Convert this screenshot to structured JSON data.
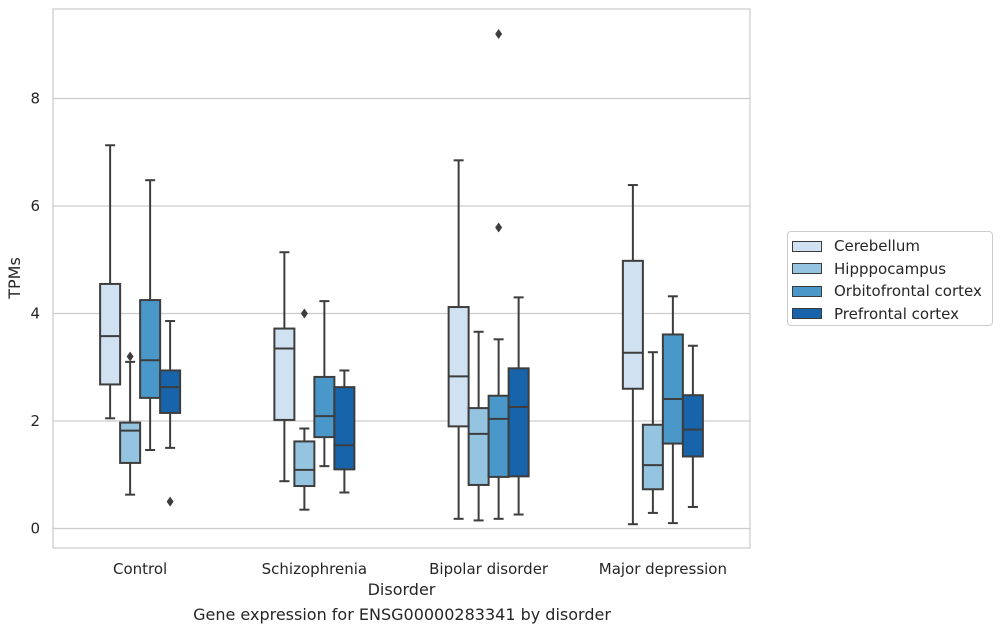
{
  "chart_data": {
    "type": "box",
    "caption": "Gene expression for ENSG00000283341 by disorder",
    "xlabel": "Disorder",
    "ylabel": "TPMs",
    "categories": [
      "Control",
      "Schizophrenia",
      "Bipolar disorder",
      "Major depression"
    ],
    "ylim": [
      -0.35,
      9.6
    ],
    "yticks": [
      0,
      2,
      4,
      6,
      8
    ],
    "grid": "horizontal",
    "legend_position": "right",
    "series": [
      {
        "name": "Cerebellum",
        "color": "#d0e1f2",
        "boxes": [
          {
            "whisker_low": 2.05,
            "q1": 2.68,
            "median": 3.58,
            "q3": 4.55,
            "whisker_high": 7.13,
            "outliers": []
          },
          {
            "whisker_low": 0.88,
            "q1": 2.02,
            "median": 3.35,
            "q3": 3.72,
            "whisker_high": 5.14,
            "outliers": []
          },
          {
            "whisker_low": 0.18,
            "q1": 1.9,
            "median": 2.83,
            "q3": 4.12,
            "whisker_high": 6.85,
            "outliers": []
          },
          {
            "whisker_low": 0.08,
            "q1": 2.6,
            "median": 3.27,
            "q3": 4.98,
            "whisker_high": 6.39,
            "outliers": []
          }
        ]
      },
      {
        "name": "Hipppocampus",
        "color": "#94c4df",
        "boxes": [
          {
            "whisker_low": 0.63,
            "q1": 1.22,
            "median": 1.82,
            "q3": 1.97,
            "whisker_high": 3.1,
            "outliers": [
              3.2
            ]
          },
          {
            "whisker_low": 0.35,
            "q1": 0.79,
            "median": 1.09,
            "q3": 1.62,
            "whisker_high": 1.86,
            "outliers": [
              4.0
            ]
          },
          {
            "whisker_low": 0.15,
            "q1": 0.81,
            "median": 1.76,
            "q3": 2.24,
            "whisker_high": 3.66,
            "outliers": []
          },
          {
            "whisker_low": 0.29,
            "q1": 0.73,
            "median": 1.18,
            "q3": 1.93,
            "whisker_high": 3.28,
            "outliers": []
          }
        ]
      },
      {
        "name": "Orbitofrontal cortex",
        "color": "#4a98c9",
        "boxes": [
          {
            "whisker_low": 1.46,
            "q1": 2.43,
            "median": 3.13,
            "q3": 4.25,
            "whisker_high": 6.48,
            "outliers": []
          },
          {
            "whisker_low": 1.16,
            "q1": 1.7,
            "median": 2.09,
            "q3": 2.82,
            "whisker_high": 4.23,
            "outliers": []
          },
          {
            "whisker_low": 0.18,
            "q1": 0.96,
            "median": 2.04,
            "q3": 2.47,
            "whisker_high": 3.52,
            "outliers": [
              5.6,
              9.2
            ]
          },
          {
            "whisker_low": 0.1,
            "q1": 1.58,
            "median": 2.41,
            "q3": 3.61,
            "whisker_high": 4.32,
            "outliers": []
          }
        ]
      },
      {
        "name": "Prefrontal cortex",
        "color": "#1764ab",
        "boxes": [
          {
            "whisker_low": 1.5,
            "q1": 2.15,
            "median": 2.63,
            "q3": 2.94,
            "whisker_high": 3.86,
            "outliers": [
              0.5
            ]
          },
          {
            "whisker_low": 0.67,
            "q1": 1.1,
            "median": 1.55,
            "q3": 2.63,
            "whisker_high": 2.94,
            "outliers": []
          },
          {
            "whisker_low": 0.26,
            "q1": 0.97,
            "median": 2.26,
            "q3": 2.98,
            "whisker_high": 4.3,
            "outliers": []
          },
          {
            "whisker_low": 0.4,
            "q1": 1.34,
            "median": 1.84,
            "q3": 2.48,
            "whisker_high": 3.4,
            "outliers": []
          }
        ]
      }
    ]
  }
}
